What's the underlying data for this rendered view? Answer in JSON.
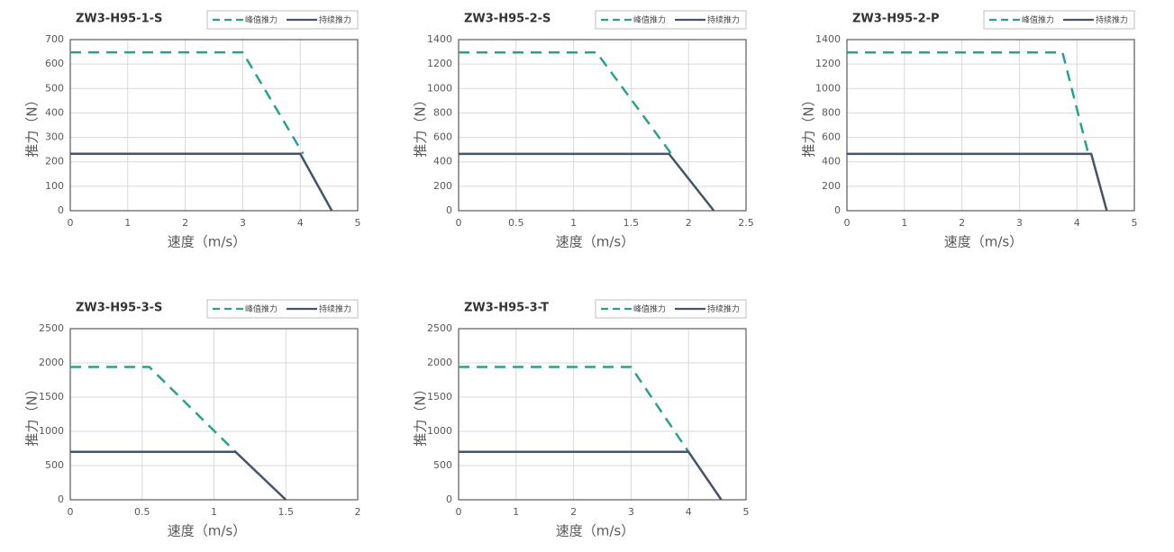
{
  "chart_data": [
    {
      "type": "line",
      "title": "ZW3-H95-1-S",
      "xlabel": "速度（m/s）",
      "ylabel": "推力（N）",
      "xlim": [
        0,
        5
      ],
      "xticks": [
        0,
        1,
        2,
        3,
        4,
        5
      ],
      "ylim": [
        0,
        700
      ],
      "yticks": [
        0,
        100,
        200,
        300,
        400,
        500,
        600,
        700
      ],
      "grid": true,
      "series": [
        {
          "name": "峰值推力",
          "color": "#2e9e8e",
          "dashed": true,
          "x": [
            0,
            3,
            4.05
          ],
          "values": [
            648,
            648,
            233
          ]
        },
        {
          "name": "持续推力",
          "color": "#44546a",
          "dashed": false,
          "x": [
            0,
            4,
            4.55
          ],
          "values": [
            233,
            233,
            0
          ]
        }
      ]
    },
    {
      "type": "line",
      "title": "ZW3-H95-2-S",
      "xlabel": "速度（m/s）",
      "ylabel": "推力（N）",
      "xlim": [
        0,
        2.5
      ],
      "xticks": [
        0,
        0.5,
        1,
        1.5,
        2,
        2.5
      ],
      "ylim": [
        0,
        1400
      ],
      "yticks": [
        0,
        200,
        400,
        600,
        800,
        1000,
        1200,
        1400
      ],
      "grid": true,
      "series": [
        {
          "name": "峰值推力",
          "color": "#2e9e8e",
          "dashed": true,
          "x": [
            0,
            1.2,
            1.85
          ],
          "values": [
            1295,
            1295,
            465
          ]
        },
        {
          "name": "持续推力",
          "color": "#44546a",
          "dashed": false,
          "x": [
            0,
            1.83,
            2.22
          ],
          "values": [
            465,
            465,
            0
          ]
        }
      ]
    },
    {
      "type": "line",
      "title": "ZW3-H95-2-P",
      "xlabel": "速度（m/s）",
      "ylabel": "推力（N）",
      "xlim": [
        0,
        5
      ],
      "xticks": [
        0,
        1,
        2,
        3,
        4,
        5
      ],
      "ylim": [
        0,
        1400
      ],
      "yticks": [
        0,
        200,
        400,
        600,
        800,
        1000,
        1200,
        1400
      ],
      "grid": true,
      "series": [
        {
          "name": "峰值推力",
          "color": "#2e9e8e",
          "dashed": true,
          "x": [
            0,
            3.75,
            4.2
          ],
          "values": [
            1295,
            1295,
            465
          ]
        },
        {
          "name": "持续推力",
          "color": "#44546a",
          "dashed": false,
          "x": [
            0,
            4.25,
            4.52
          ],
          "values": [
            465,
            465,
            0
          ]
        }
      ]
    },
    {
      "type": "line",
      "title": "ZW3-H95-3-S",
      "xlabel": "速度（m/s）",
      "ylabel": "推力（N）",
      "xlim": [
        0,
        2
      ],
      "xticks": [
        0,
        0.5,
        1,
        1.5,
        2
      ],
      "ylim": [
        0,
        2500
      ],
      "yticks": [
        0,
        500,
        1000,
        1500,
        2000,
        2500
      ],
      "grid": true,
      "series": [
        {
          "name": "峰值推力",
          "color": "#2e9e8e",
          "dashed": true,
          "x": [
            0,
            0.55,
            1.15
          ],
          "values": [
            1940,
            1940,
            700
          ]
        },
        {
          "name": "持续推力",
          "color": "#44546a",
          "dashed": false,
          "x": [
            0,
            1.15,
            1.5
          ],
          "values": [
            700,
            700,
            0
          ]
        }
      ]
    },
    {
      "type": "line",
      "title": "ZW3-H95-3-T",
      "xlabel": "速度（m/s）",
      "ylabel": "推力（N）",
      "xlim": [
        0,
        5
      ],
      "xticks": [
        0,
        1,
        2,
        3,
        4,
        5
      ],
      "ylim": [
        0,
        2500
      ],
      "yticks": [
        0,
        500,
        1000,
        1500,
        2000,
        2500
      ],
      "grid": true,
      "series": [
        {
          "name": "峰值推力",
          "color": "#2e9e8e",
          "dashed": true,
          "x": [
            0,
            3,
            4
          ],
          "values": [
            1940,
            1940,
            700
          ]
        },
        {
          "name": "持续推力",
          "color": "#44546a",
          "dashed": false,
          "x": [
            0,
            4,
            4.57
          ],
          "values": [
            700,
            700,
            0
          ]
        }
      ]
    }
  ]
}
